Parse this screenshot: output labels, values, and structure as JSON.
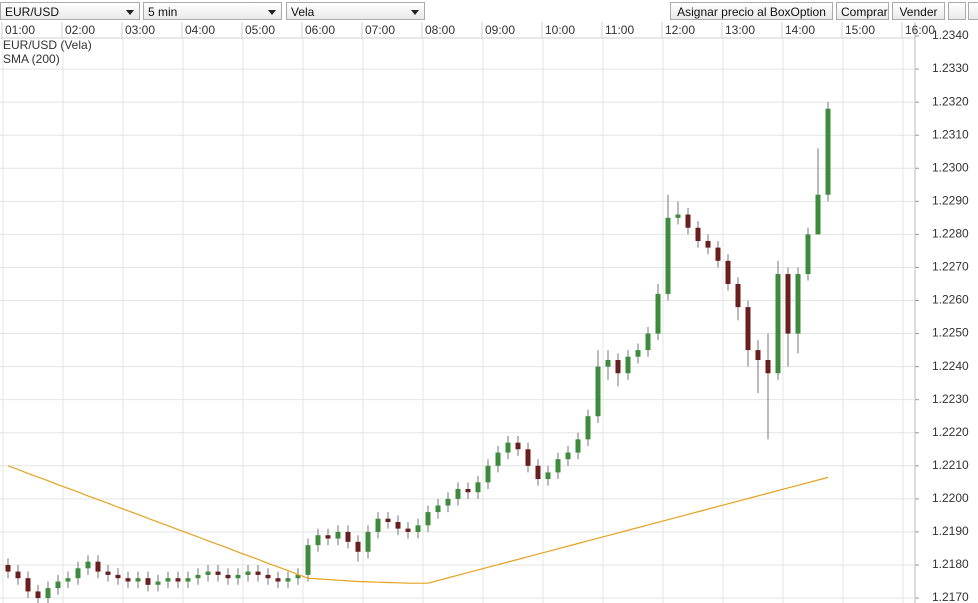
{
  "toolbar": {
    "symbol": "EUR/USD",
    "interval": "5 min",
    "chart_type": "Vela",
    "buttons": [
      "Asignar precio al BoxOption",
      "Comprar",
      "Vender"
    ]
  },
  "chart_data": {
    "type": "candlestick",
    "x": [
      "01:00",
      "01:10",
      "01:20",
      "01:30",
      "01:40",
      "01:50",
      "02:00",
      "02:10",
      "02:20",
      "02:30",
      "02:40",
      "02:50",
      "03:00",
      "03:10",
      "03:20",
      "03:30",
      "03:40",
      "03:50",
      "04:00",
      "04:10",
      "04:20",
      "04:30",
      "04:40",
      "04:50",
      "05:00",
      "05:10",
      "05:20",
      "05:30",
      "05:40",
      "05:50",
      "06:00",
      "06:10",
      "06:20",
      "06:30",
      "06:40",
      "06:50",
      "07:00",
      "07:10",
      "07:20",
      "07:30",
      "07:40",
      "07:50",
      "08:00",
      "08:10",
      "08:20",
      "08:30",
      "08:40",
      "08:50",
      "09:00",
      "09:10",
      "09:20",
      "09:30",
      "09:40",
      "09:50",
      "10:00",
      "10:10",
      "10:20",
      "10:30",
      "10:40",
      "10:50",
      "11:00",
      "11:10",
      "11:20",
      "11:30",
      "11:40",
      "11:50",
      "12:00",
      "12:10",
      "12:20",
      "12:30",
      "12:40",
      "12:50",
      "13:00",
      "13:10",
      "13:20",
      "13:30",
      "13:40",
      "13:50",
      "14:00",
      "14:10",
      "14:20",
      "14:30",
      "14:40"
    ],
    "xticks": [
      "01:00",
      "02:00",
      "03:00",
      "04:00",
      "05:00",
      "06:00",
      "07:00",
      "08:00",
      "09:00",
      "10:00",
      "11:00",
      "12:00",
      "13:00",
      "14:00",
      "15:00",
      "16:00"
    ],
    "ylim": [
      1.21685,
      1.23394
    ],
    "yticks": [
      {
        "value": 1.217,
        "label": "1.2170"
      },
      {
        "value": 1.218,
        "label": "1.2180"
      },
      {
        "value": 1.219,
        "label": "1.2190"
      },
      {
        "value": 1.22,
        "label": "1.2200"
      },
      {
        "value": 1.221,
        "label": "1.2210"
      },
      {
        "value": 1.222,
        "label": "1.2220"
      },
      {
        "value": 1.223,
        "label": "1.2230"
      },
      {
        "value": 1.224,
        "label": "1.2240"
      },
      {
        "value": 1.225,
        "label": "1.2250"
      },
      {
        "value": 1.226,
        "label": "1.2260"
      },
      {
        "value": 1.227,
        "label": "1.2270"
      },
      {
        "value": 1.228,
        "label": "1.2280"
      },
      {
        "value": 1.229,
        "label": "1.2290"
      },
      {
        "value": 1.23,
        "label": "1.2300"
      },
      {
        "value": 1.231,
        "label": "1.2310"
      },
      {
        "value": 1.232,
        "label": "1.2320"
      },
      {
        "value": 1.233,
        "label": "1.2330"
      },
      {
        "value": 1.234,
        "label": "1.2340"
      }
    ],
    "grid": true,
    "series": [
      {
        "name": "EUR/USD (Vela)",
        "color": "#3d8c3d",
        "down_color": "#6a1e1e",
        "wick_color": "#777777",
        "open": [
          1.218,
          1.2178,
          1.2176,
          1.2172,
          1.217,
          1.2173,
          1.2175,
          1.2176,
          1.2179,
          1.2181,
          1.2178,
          1.2177,
          1.2176,
          1.2175,
          1.2176,
          1.2174,
          1.2175,
          1.2176,
          1.2175,
          1.2176,
          1.2177,
          1.2178,
          1.2177,
          1.2176,
          1.2177,
          1.2178,
          1.2177,
          1.2176,
          1.2175,
          1.2176,
          1.2177,
          1.2186,
          1.2189,
          1.2188,
          1.219,
          1.2187,
          1.2184,
          1.219,
          1.2194,
          1.2193,
          1.2191,
          1.219,
          1.2192,
          1.2196,
          1.2198,
          1.22,
          1.2203,
          1.2202,
          1.2205,
          1.221,
          1.2214,
          1.2217,
          1.2215,
          1.221,
          1.2206,
          1.2208,
          1.2212,
          1.2214,
          1.2218,
          1.2225,
          1.224,
          1.2242,
          1.2238,
          1.2243,
          1.2245,
          1.225,
          1.2262,
          1.2285,
          1.2286,
          1.2282,
          1.2278,
          1.2276,
          1.2272,
          1.2265,
          1.2258,
          1.2245,
          1.2242,
          1.2238,
          1.2268,
          1.225,
          1.2268,
          1.228,
          1.2292
        ],
        "high": [
          1.2182,
          1.218,
          1.2178,
          1.2174,
          1.2175,
          1.2177,
          1.2178,
          1.2181,
          1.2183,
          1.2183,
          1.218,
          1.2179,
          1.2178,
          1.2178,
          1.2178,
          1.2177,
          1.2178,
          1.2178,
          1.2178,
          1.2179,
          1.218,
          1.218,
          1.2179,
          1.2179,
          1.218,
          1.218,
          1.2179,
          1.2178,
          1.2178,
          1.2179,
          1.2188,
          1.2191,
          1.2191,
          1.2192,
          1.2192,
          1.2189,
          1.2192,
          1.2196,
          1.2196,
          1.2195,
          1.2193,
          1.2194,
          1.2198,
          1.22,
          1.2202,
          1.2205,
          1.2205,
          1.2207,
          1.2212,
          1.2216,
          1.2219,
          1.2219,
          1.2217,
          1.2212,
          1.221,
          1.2214,
          1.2216,
          1.222,
          1.2227,
          1.2245,
          1.2245,
          1.2244,
          1.2245,
          1.2247,
          1.2252,
          1.2265,
          1.2292,
          1.229,
          1.2288,
          1.2284,
          1.228,
          1.2278,
          1.2274,
          1.2267,
          1.226,
          1.2248,
          1.225,
          1.2272,
          1.227,
          1.227,
          1.2282,
          1.2306,
          1.232
        ],
        "low": [
          1.2176,
          1.2174,
          1.217,
          1.2168,
          1.2168,
          1.2171,
          1.2173,
          1.2174,
          1.2177,
          1.2176,
          1.2175,
          1.2174,
          1.2173,
          1.2173,
          1.2172,
          1.2172,
          1.2173,
          1.2173,
          1.2173,
          1.2174,
          1.2175,
          1.2175,
          1.2174,
          1.2174,
          1.2175,
          1.2175,
          1.2174,
          1.2173,
          1.2173,
          1.2174,
          1.2175,
          1.2184,
          1.2186,
          1.2186,
          1.2185,
          1.2181,
          1.2182,
          1.2188,
          1.2191,
          1.2189,
          1.2188,
          1.2188,
          1.219,
          1.2194,
          1.2196,
          1.2198,
          1.22,
          1.22,
          1.2203,
          1.2208,
          1.2212,
          1.2213,
          1.2208,
          1.2204,
          1.2204,
          1.2206,
          1.221,
          1.2212,
          1.2216,
          1.2223,
          1.2236,
          1.2234,
          1.2236,
          1.2241,
          1.2243,
          1.2248,
          1.226,
          1.2283,
          1.228,
          1.2276,
          1.2274,
          1.227,
          1.2263,
          1.2254,
          1.224,
          1.2232,
          1.2218,
          1.2236,
          1.224,
          1.2244,
          1.2266,
          1.228,
          1.229
        ],
        "close": [
          1.2178,
          1.2176,
          1.2172,
          1.217,
          1.2173,
          1.2175,
          1.2176,
          1.2179,
          1.2181,
          1.2178,
          1.2177,
          1.2176,
          1.2175,
          1.2176,
          1.2174,
          1.2175,
          1.2176,
          1.2175,
          1.2176,
          1.2177,
          1.2178,
          1.2177,
          1.2176,
          1.2177,
          1.2178,
          1.2177,
          1.2176,
          1.2175,
          1.2176,
          1.2177,
          1.2186,
          1.2189,
          1.2188,
          1.219,
          1.2187,
          1.2184,
          1.219,
          1.2194,
          1.2193,
          1.2191,
          1.219,
          1.2192,
          1.2196,
          1.2198,
          1.22,
          1.2203,
          1.2202,
          1.2205,
          1.221,
          1.2214,
          1.2217,
          1.2215,
          1.221,
          1.2206,
          1.2208,
          1.2212,
          1.2214,
          1.2218,
          1.2225,
          1.224,
          1.2242,
          1.2238,
          1.2243,
          1.2245,
          1.225,
          1.2262,
          1.2285,
          1.2286,
          1.2282,
          1.2278,
          1.2276,
          1.2272,
          1.2265,
          1.2258,
          1.2245,
          1.2242,
          1.2238,
          1.2268,
          1.225,
          1.2268,
          1.228,
          1.2292,
          1.2318
        ]
      },
      {
        "name": "SMA (200)",
        "color": "#e5a21f",
        "values": [
          1.221,
          1.22089,
          1.22077,
          1.22066,
          1.22055,
          1.22043,
          1.22032,
          1.22021,
          1.22009,
          1.21998,
          1.21987,
          1.21975,
          1.21964,
          1.21953,
          1.21941,
          1.2193,
          1.21919,
          1.21907,
          1.21896,
          1.21885,
          1.21873,
          1.21862,
          1.21851,
          1.21839,
          1.21828,
          1.21817,
          1.21805,
          1.21794,
          1.21783,
          1.21771,
          1.2176,
          1.21758,
          1.21756,
          1.21754,
          1.21752,
          1.2175,
          1.21749,
          1.21748,
          1.21747,
          1.21746,
          1.21745,
          1.21745,
          1.21745,
          1.21753,
          1.21761,
          1.21769,
          1.21777,
          1.21785,
          1.21793,
          1.21801,
          1.21809,
          1.21817,
          1.21825,
          1.21833,
          1.21841,
          1.21849,
          1.21857,
          1.21865,
          1.21873,
          1.21881,
          1.21889,
          1.21897,
          1.21905,
          1.21913,
          1.21921,
          1.21929,
          1.21937,
          1.21945,
          1.21953,
          1.21961,
          1.21969,
          1.21977,
          1.21985,
          1.21993,
          1.22001,
          1.22009,
          1.22017,
          1.22025,
          1.22033,
          1.22041,
          1.22049,
          1.22057,
          1.22065
        ]
      }
    ]
  }
}
